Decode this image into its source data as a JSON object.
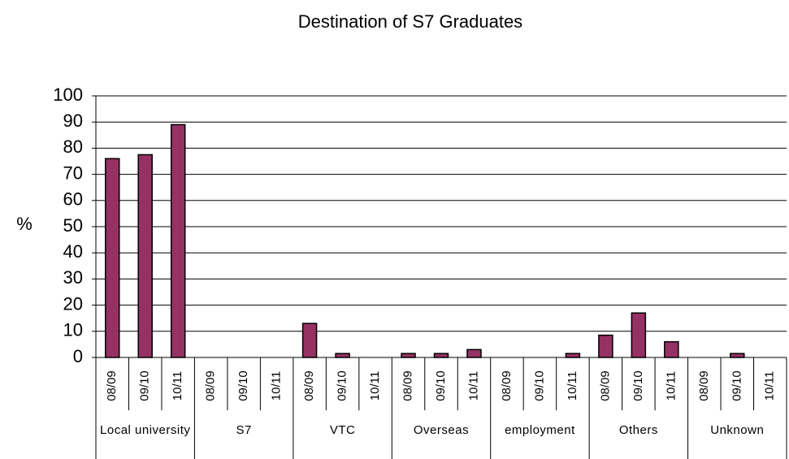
{
  "chart_data": {
    "type": "bar",
    "title": "Destination of S7 Graduates",
    "y_label": "%",
    "color": "#953163",
    "groups": [
      {
        "name": "Local university",
        "categories": [
          "08/09",
          "09/10",
          "10/11"
        ],
        "values": [
          76,
          77.5,
          89
        ]
      },
      {
        "name": "S7",
        "categories": [
          "08/09",
          "09/10",
          "10/11"
        ],
        "values": [
          0,
          0,
          0
        ]
      },
      {
        "name": "VTC",
        "categories": [
          "08/09",
          "09/10",
          "10/11"
        ],
        "values": [
          13,
          1.5,
          0
        ]
      },
      {
        "name": "Overseas",
        "categories": [
          "08/09",
          "09/10",
          "10/11"
        ],
        "values": [
          1.5,
          1.5,
          3
        ]
      },
      {
        "name": "employment",
        "categories": [
          "08/09",
          "09/10",
          "10/11"
        ],
        "values": [
          0,
          0,
          1.5
        ]
      },
      {
        "name": "Others",
        "categories": [
          "08/09",
          "09/10",
          "10/11"
        ],
        "values": [
          8.5,
          17,
          6
        ]
      },
      {
        "name": "Unknown",
        "categories": [
          "08/09",
          "09/10",
          "10/11"
        ],
        "values": [
          0,
          1.5,
          0
        ]
      }
    ],
    "ylim": [
      0,
      100
    ],
    "yticks": [
      0,
      10,
      20,
      30,
      40,
      50,
      60,
      70,
      80,
      90,
      100
    ],
    "grid": true
  }
}
